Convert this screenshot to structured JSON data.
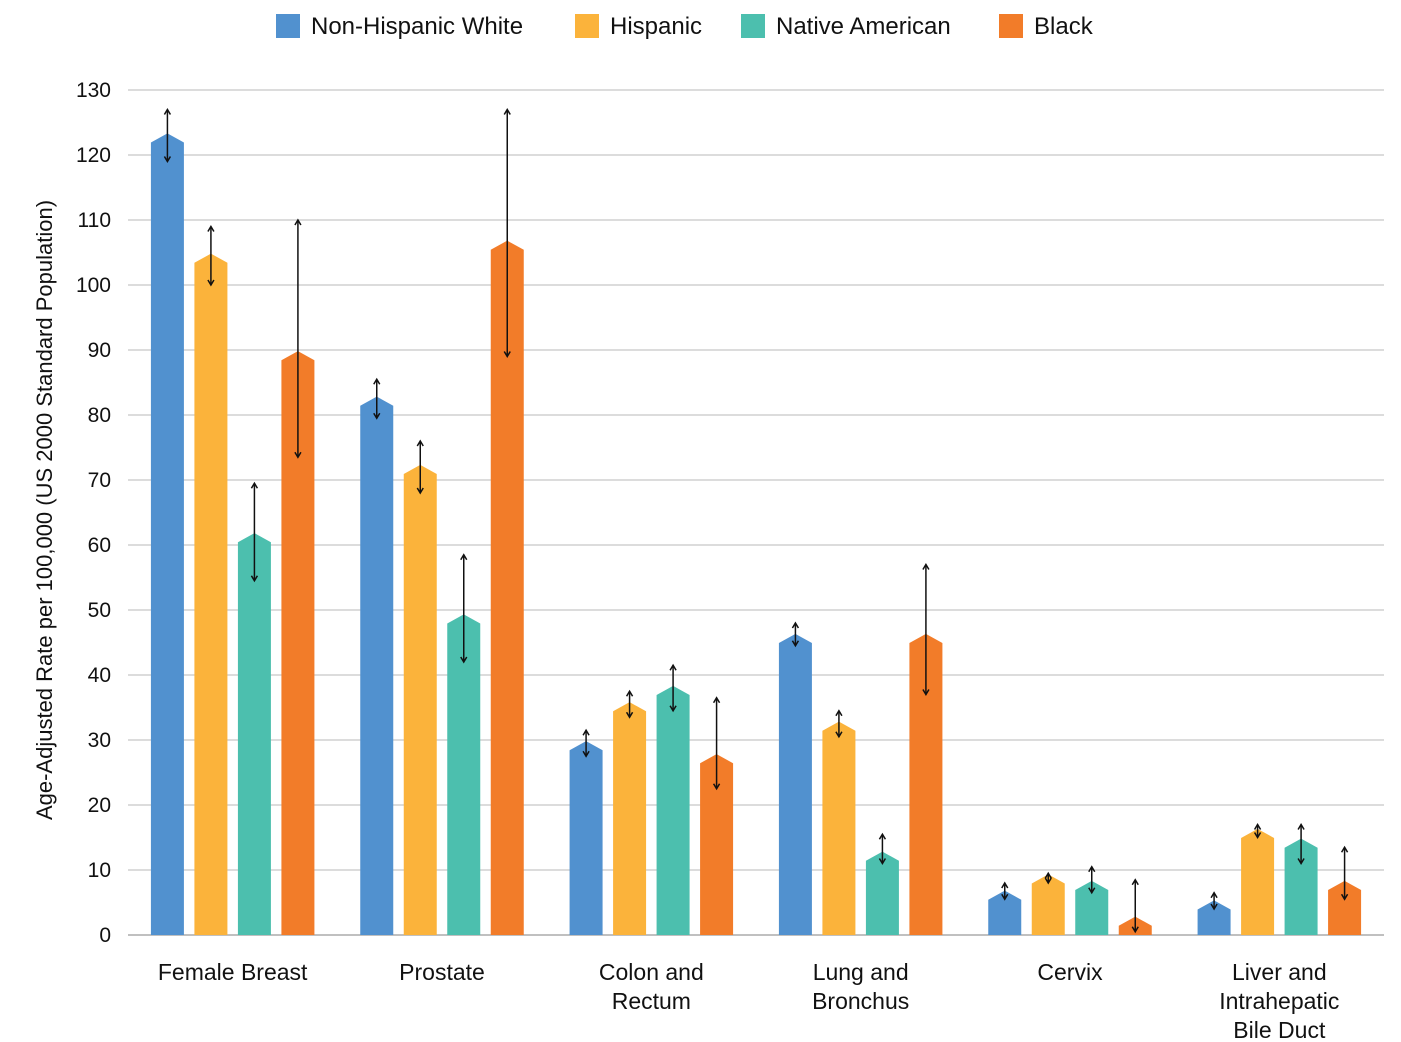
{
  "chart_data": {
    "type": "bar",
    "ylabel": "Age-Adjusted Rate per 100,000 (US 2000 Standard Population)",
    "xlabel": "",
    "ylim": [
      0,
      130
    ],
    "yticks": [
      0,
      10,
      20,
      30,
      40,
      50,
      60,
      70,
      80,
      90,
      100,
      110,
      120,
      130
    ],
    "grid": true,
    "legend_position": "top-center",
    "categories": [
      [
        "Female Breast"
      ],
      [
        "Prostate"
      ],
      [
        "Colon and",
        "Rectum"
      ],
      [
        "Lung and",
        "Bronchus"
      ],
      [
        "Cervix"
      ],
      [
        "Liver and",
        "Intrahepatic",
        "Bile Duct"
      ]
    ],
    "series": [
      {
        "name": "Non-Hispanic White",
        "color": "#5191cf",
        "values": [
          123.0,
          82.5,
          29.5,
          46.0,
          6.5,
          5.0
        ],
        "ci_low": [
          119.0,
          79.5,
          27.5,
          44.5,
          5.5,
          4.0
        ],
        "ci_high": [
          127.0,
          85.5,
          31.5,
          48.0,
          8.0,
          6.5
        ]
      },
      {
        "name": "Hispanic",
        "color": "#fbb33b",
        "values": [
          104.5,
          72.0,
          35.5,
          32.5,
          9.0,
          16.0
        ],
        "ci_low": [
          100.0,
          68.0,
          33.5,
          30.5,
          8.0,
          15.0
        ],
        "ci_high": [
          109.0,
          76.0,
          37.5,
          34.5,
          9.5,
          17.0
        ]
      },
      {
        "name": "Native American",
        "color": "#4cbfae",
        "values": [
          61.5,
          49.0,
          38.0,
          12.5,
          8.0,
          14.5
        ],
        "ci_low": [
          54.5,
          42.0,
          34.5,
          11.0,
          6.5,
          11.0
        ],
        "ci_high": [
          69.5,
          58.5,
          41.5,
          15.5,
          10.5,
          17.0
        ]
      },
      {
        "name": "Black",
        "color": "#f27c29",
        "values": [
          89.5,
          106.5,
          27.5,
          46.0,
          2.5,
          8.0
        ],
        "ci_low": [
          73.5,
          89.0,
          22.5,
          37.0,
          0.5,
          5.5
        ],
        "ci_high": [
          110.0,
          127.0,
          36.5,
          57.0,
          8.5,
          13.5
        ]
      }
    ]
  }
}
